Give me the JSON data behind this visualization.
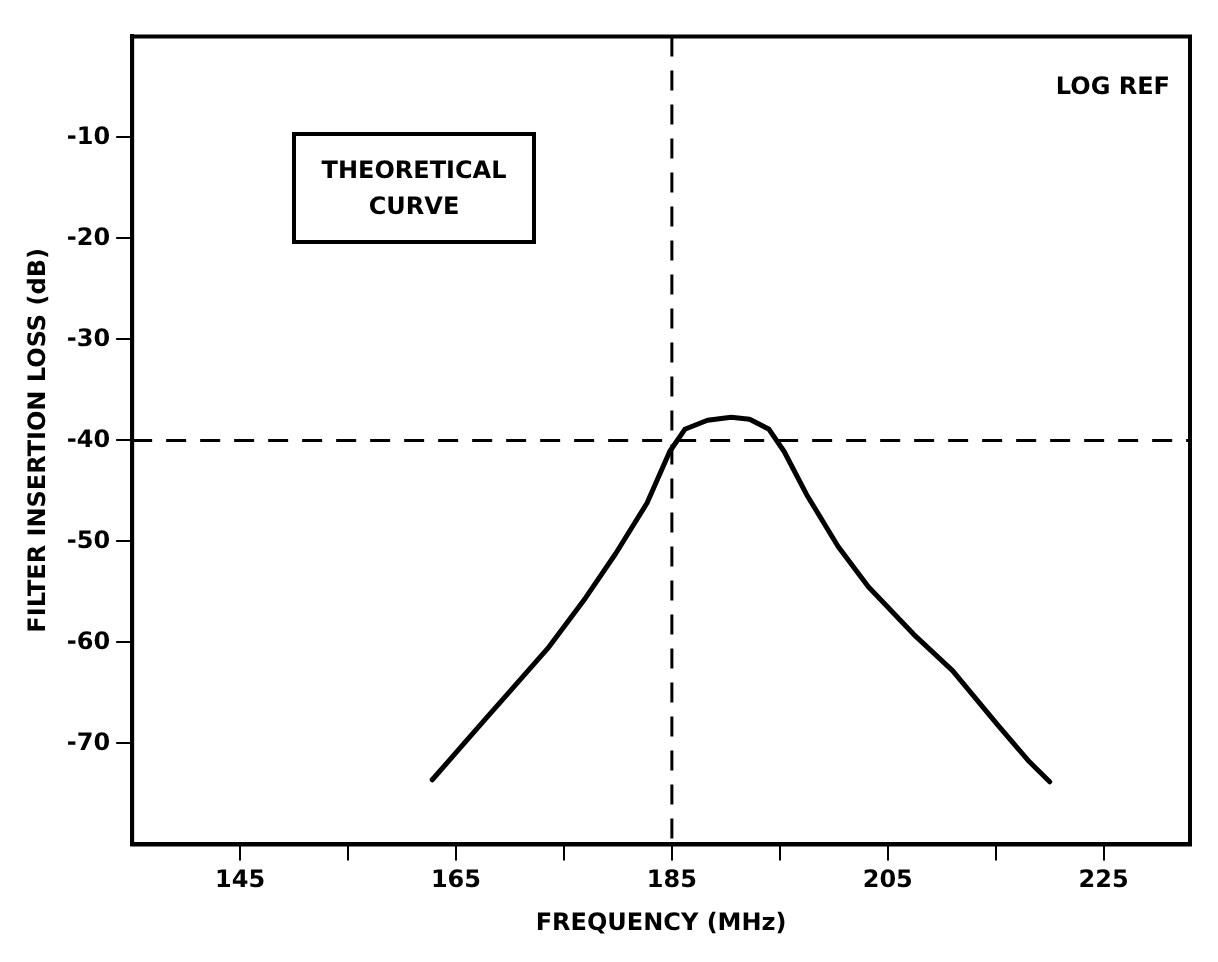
{
  "chart_data": {
    "type": "line",
    "xlabel": "FREQUENCY (MHz)",
    "ylabel": "FILTER INSERTION LOSS (dB)",
    "xlim": [
      135,
      233
    ],
    "ylim": [
      -80,
      0
    ],
    "xticks": [
      145,
      {
        "value": 155,
        "label": null
      },
      165,
      {
        "value": 175,
        "label": null
      },
      185,
      {
        "value": 195,
        "label": null
      },
      205,
      {
        "value": 215,
        "label": null
      },
      225
    ],
    "yticks": [
      -10,
      -20,
      -30,
      -40,
      -50,
      -60,
      -70
    ],
    "series": [
      {
        "color": "#000000",
        "x": [
          162.8,
          167.8,
          173.5,
          177.0,
          179.8,
          182.7,
          184.8,
          186.2,
          188.3,
          190.5,
          192.2,
          194.0,
          195.4,
          197.5,
          200.4,
          203.2,
          207.4,
          211.0,
          215.2,
          218.1,
          220.0
        ],
        "values": [
          -73.6,
          -67.5,
          -60.6,
          -55.6,
          -51.2,
          -46.2,
          -41.1,
          -38.9,
          -38.0,
          -37.7,
          -37.9,
          -38.9,
          -41.1,
          -45.4,
          -50.5,
          -54.5,
          -59.2,
          -62.8,
          -68.2,
          -71.8,
          -73.8
        ]
      }
    ],
    "ref_lines": [
      {
        "axis": "x",
        "value": 185,
        "line_style": "dashed",
        "color": "#000000"
      },
      {
        "axis": "y",
        "value": -40,
        "line_style": "dashed",
        "color": "#000000"
      }
    ],
    "annotations": [
      "THEORETICAL CURVE",
      "LOG REF"
    ],
    "grid": false,
    "legend": false,
    "marker": "none",
    "line_style": "solid"
  }
}
